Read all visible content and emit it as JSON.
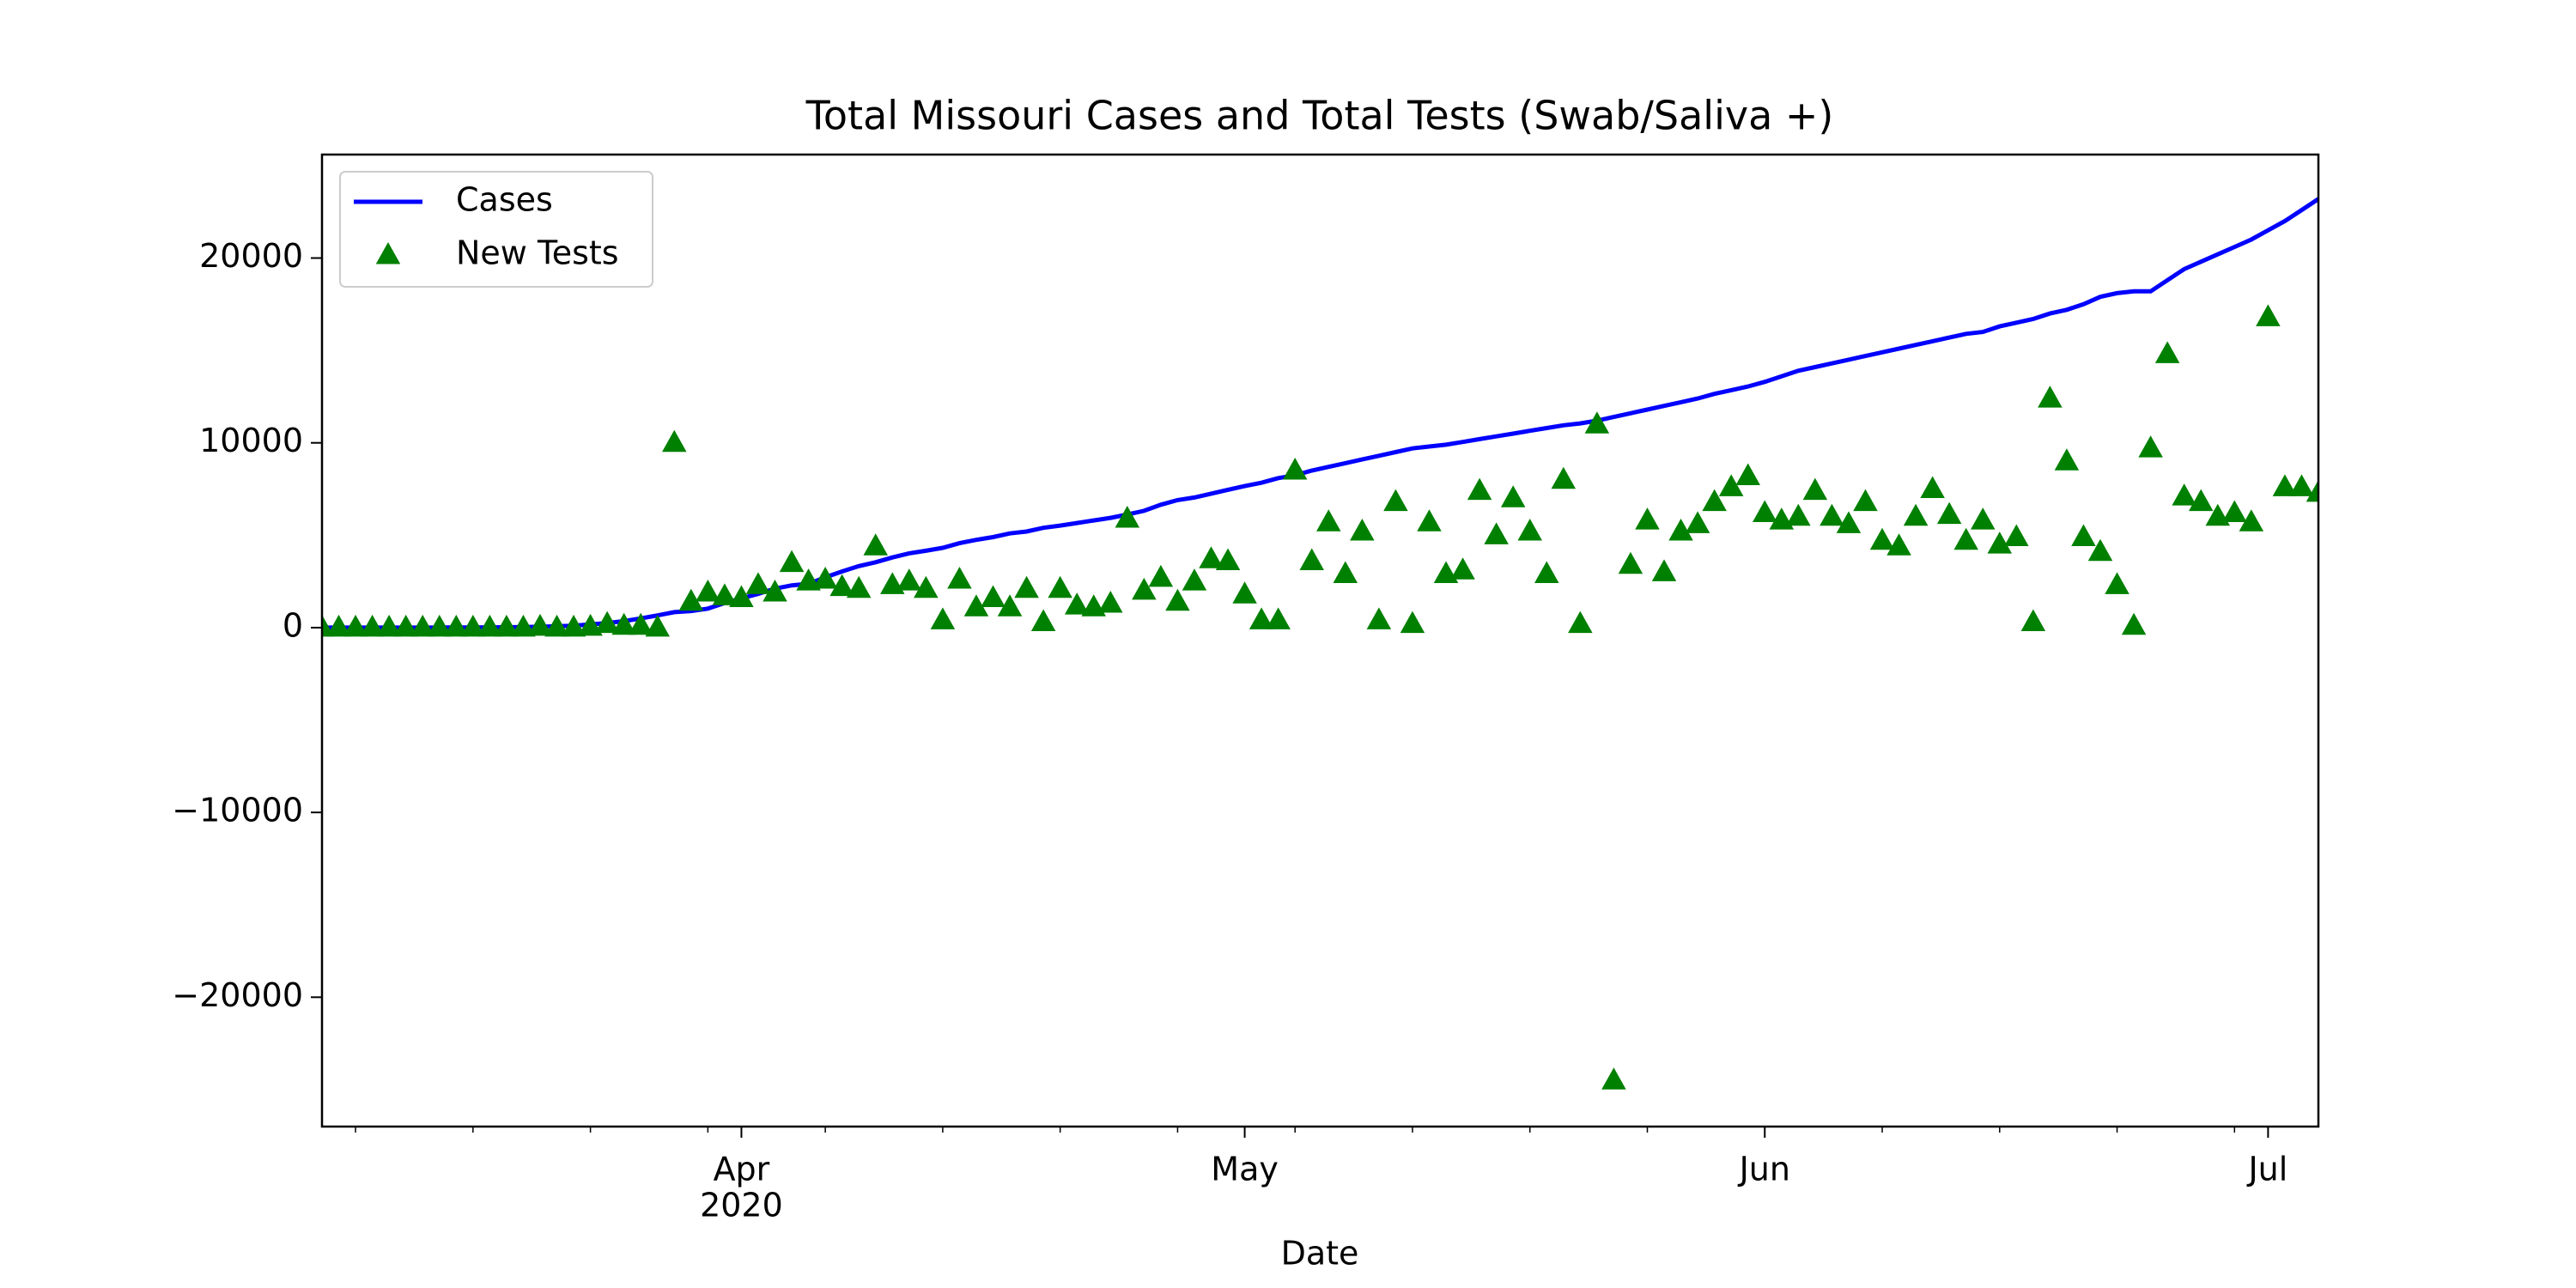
{
  "chart_data": {
    "type": "line-scatter",
    "title": "Total Missouri Cases and Total Tests (Swab/Saliva +)",
    "xlabel": "Date",
    "year_label": "2020",
    "x": [
      "2020-03-07",
      "2020-03-08",
      "2020-03-09",
      "2020-03-10",
      "2020-03-11",
      "2020-03-12",
      "2020-03-13",
      "2020-03-14",
      "2020-03-15",
      "2020-03-16",
      "2020-03-17",
      "2020-03-18",
      "2020-03-19",
      "2020-03-20",
      "2020-03-21",
      "2020-03-22",
      "2020-03-23",
      "2020-03-24",
      "2020-03-25",
      "2020-03-26",
      "2020-03-27",
      "2020-03-28",
      "2020-03-29",
      "2020-03-30",
      "2020-03-31",
      "2020-04-01",
      "2020-04-02",
      "2020-04-03",
      "2020-04-04",
      "2020-04-05",
      "2020-04-06",
      "2020-04-07",
      "2020-04-08",
      "2020-04-09",
      "2020-04-10",
      "2020-04-11",
      "2020-04-12",
      "2020-04-13",
      "2020-04-14",
      "2020-04-15",
      "2020-04-16",
      "2020-04-17",
      "2020-04-18",
      "2020-04-19",
      "2020-04-20",
      "2020-04-21",
      "2020-04-22",
      "2020-04-23",
      "2020-04-24",
      "2020-04-25",
      "2020-04-26",
      "2020-04-27",
      "2020-04-28",
      "2020-04-29",
      "2020-04-30",
      "2020-05-01",
      "2020-05-02",
      "2020-05-03",
      "2020-05-04",
      "2020-05-05",
      "2020-05-06",
      "2020-05-07",
      "2020-05-08",
      "2020-05-09",
      "2020-05-10",
      "2020-05-11",
      "2020-05-12",
      "2020-05-13",
      "2020-05-14",
      "2020-05-15",
      "2020-05-16",
      "2020-05-17",
      "2020-05-18",
      "2020-05-19",
      "2020-05-20",
      "2020-05-21",
      "2020-05-22",
      "2020-05-23",
      "2020-05-24",
      "2020-05-25",
      "2020-05-26",
      "2020-05-27",
      "2020-05-28",
      "2020-05-29",
      "2020-05-30",
      "2020-05-31",
      "2020-06-01",
      "2020-06-02",
      "2020-06-03",
      "2020-06-04",
      "2020-06-05",
      "2020-06-06",
      "2020-06-07",
      "2020-06-08",
      "2020-06-09",
      "2020-06-10",
      "2020-06-11",
      "2020-06-12",
      "2020-06-13",
      "2020-06-14",
      "2020-06-15",
      "2020-06-16",
      "2020-06-17",
      "2020-06-18",
      "2020-06-19",
      "2020-06-20",
      "2020-06-21",
      "2020-06-22",
      "2020-06-23",
      "2020-06-24",
      "2020-06-25",
      "2020-06-26",
      "2020-06-27",
      "2020-06-28",
      "2020-06-29",
      "2020-06-30",
      "2020-07-01",
      "2020-07-02",
      "2020-07-03",
      "2020-07-04"
    ],
    "series": [
      {
        "name": "Cases",
        "color": "#0000ff",
        "mark": "line",
        "values": [
          0,
          0,
          0,
          0,
          1,
          1,
          2,
          4,
          5,
          10,
          15,
          20,
          30,
          50,
          75,
          100,
          180,
          250,
          350,
          500,
          660,
          840,
          900,
          1030,
          1330,
          1580,
          1830,
          2110,
          2290,
          2370,
          2720,
          3040,
          3330,
          3540,
          3800,
          4020,
          4160,
          4320,
          4570,
          4750,
          4900,
          5100,
          5200,
          5400,
          5520,
          5660,
          5800,
          5940,
          6120,
          6320,
          6650,
          6900,
          7040,
          7250,
          7460,
          7660,
          7840,
          8090,
          8240,
          8500,
          8700,
          8900,
          9100,
          9300,
          9500,
          9700,
          9800,
          9900,
          10050,
          10200,
          10350,
          10500,
          10650,
          10800,
          10950,
          11050,
          11200,
          11400,
          11600,
          11800,
          12000,
          12200,
          12400,
          12650,
          12850,
          13050,
          13300,
          13600,
          13900,
          14100,
          14300,
          14500,
          14700,
          14900,
          15100,
          15300,
          15500,
          15700,
          15900,
          16000,
          16300,
          16500,
          16700,
          17000,
          17200,
          17500,
          17900,
          18100,
          18200,
          18200,
          18800,
          19400,
          19800,
          20200,
          20600,
          21000,
          21500,
          22000,
          22600,
          23200
        ]
      },
      {
        "name": "New Tests",
        "color": "#008000",
        "mark": "triangle",
        "values": [
          0,
          0,
          0,
          0,
          0,
          0,
          0,
          0,
          0,
          0,
          0,
          0,
          0,
          50,
          0,
          0,
          50,
          200,
          100,
          100,
          0,
          10000,
          1400,
          1900,
          1700,
          1600,
          2300,
          1900,
          3500,
          2500,
          2600,
          2200,
          2100,
          4400,
          2300,
          2500,
          2100,
          400,
          2600,
          1100,
          1600,
          1100,
          2100,
          300,
          2100,
          1200,
          1100,
          1300,
          5900,
          2000,
          2700,
          1400,
          2500,
          3700,
          3600,
          1800,
          400,
          400,
          8500,
          3600,
          5700,
          2900,
          5200,
          400,
          6800,
          200,
          5700,
          2900,
          3100,
          7400,
          5000,
          7000,
          5200,
          2900,
          8000,
          200,
          11000,
          -24500,
          3400,
          5800,
          3000,
          5200,
          5600,
          6800,
          7600,
          8200,
          6200,
          5800,
          6000,
          7400,
          6000,
          5600,
          6800,
          4700,
          4400,
          6000,
          7500,
          6100,
          4700,
          5800,
          4500,
          4900,
          300,
          12400,
          9000,
          4900,
          4100,
          2300,
          100,
          9700,
          14800,
          7100,
          6800,
          6000,
          6200,
          5700,
          16800,
          7600,
          7600,
          7300
        ]
      }
    ],
    "xlim": [
      "2020-03-07",
      "2020-07-04"
    ],
    "xticks": [
      {
        "value": "2020-04-01",
        "label": "Apr"
      },
      {
        "value": "2020-05-01",
        "label": "May"
      },
      {
        "value": "2020-06-01",
        "label": "Jun"
      },
      {
        "value": "2020-07-01",
        "label": "Jul"
      }
    ],
    "xminorticks": [
      "2020-03-09",
      "2020-03-16",
      "2020-03-23",
      "2020-03-30",
      "2020-04-06",
      "2020-04-13",
      "2020-04-20",
      "2020-04-27",
      "2020-05-04",
      "2020-05-11",
      "2020-05-18",
      "2020-05-25",
      "2020-06-08",
      "2020-06-15",
      "2020-06-22",
      "2020-06-29"
    ],
    "ylim": [
      -27000,
      25600
    ],
    "yticks": [
      {
        "value": -20000,
        "label": "−20000"
      },
      {
        "value": -10000,
        "label": "−10000"
      },
      0,
      10000,
      20000
    ],
    "grid": false,
    "legend": "upper left"
  }
}
